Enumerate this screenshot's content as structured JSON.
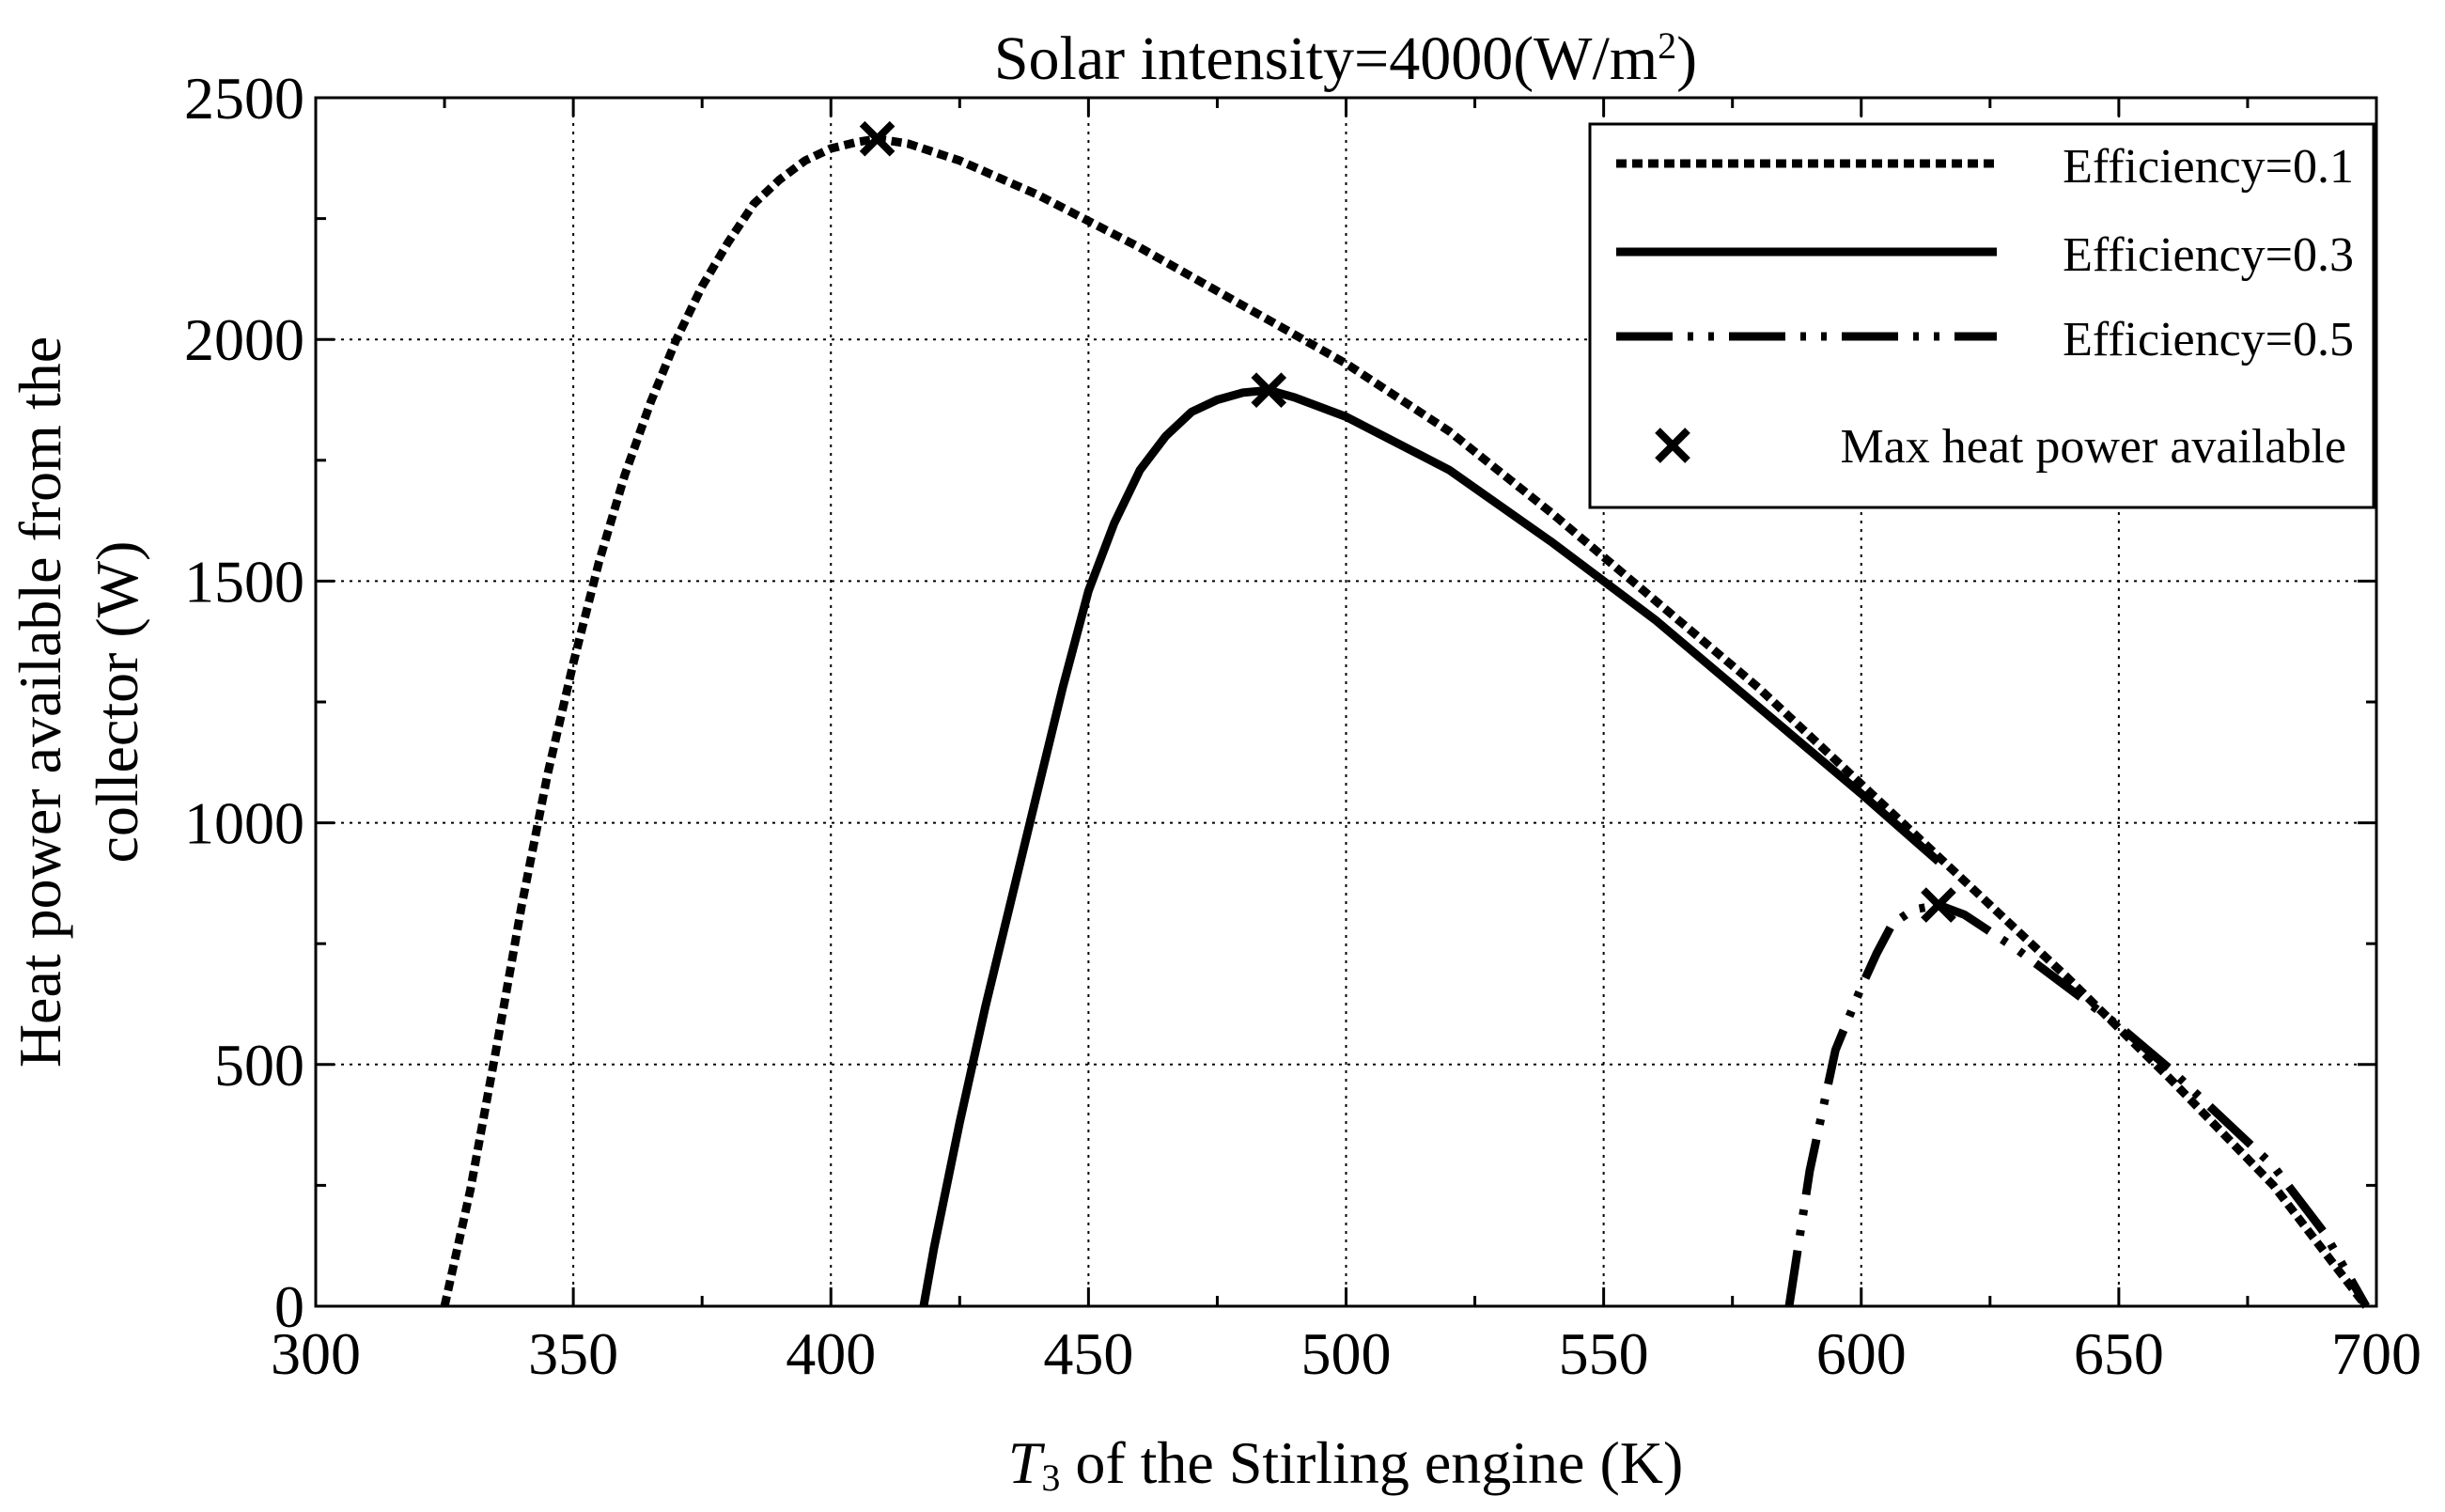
{
  "chart_data": {
    "type": "line",
    "title_prefix": "Solar intensity=4000(W/m",
    "title_sup": "2",
    "title_suffix": ")",
    "xlabel_italic": "T",
    "xlabel_sub": "3",
    "xlabel_rest": " of the Stirling engine (K)",
    "ylabel_line1": "Heat power available from the",
    "ylabel_line2": "collector (W)",
    "xlim": [
      300,
      700
    ],
    "ylim": [
      0,
      2500
    ],
    "xticks": [
      300,
      350,
      400,
      450,
      500,
      550,
      600,
      650,
      700
    ],
    "yticks": [
      0,
      500,
      1000,
      1500,
      2000,
      2500
    ],
    "grid": true,
    "legend_position": "top-right",
    "series": [
      {
        "name": "Efficiency=0.1",
        "style": "dotted",
        "x": [
          325,
          330,
          335,
          340,
          345,
          350,
          355,
          360,
          365,
          370,
          375,
          380,
          385,
          390,
          395,
          400,
          405,
          409,
          415,
          425,
          440,
          460,
          480,
          500,
          520,
          540,
          560,
          580,
          600,
          620,
          640,
          660,
          680,
          698
        ],
        "y": [
          0,
          240,
          530,
          830,
          1100,
          1330,
          1540,
          1720,
          1870,
          2000,
          2110,
          2200,
          2280,
          2330,
          2370,
          2395,
          2408,
          2415,
          2405,
          2370,
          2300,
          2190,
          2070,
          1950,
          1810,
          1640,
          1460,
          1280,
          1080,
          880,
          680,
          470,
          250,
          0
        ]
      },
      {
        "name": "Efficiency=0.3",
        "style": "solid",
        "x": [
          418,
          420,
          425,
          430,
          435,
          440,
          445,
          450,
          455,
          460,
          465,
          470,
          475,
          480,
          485,
          490,
          500,
          520,
          540,
          560,
          580,
          600,
          615
        ],
        "y": [
          0,
          120,
          380,
          620,
          840,
          1060,
          1280,
          1480,
          1620,
          1730,
          1800,
          1850,
          1875,
          1890,
          1895,
          1880,
          1840,
          1730,
          1580,
          1420,
          1240,
          1060,
          920
        ]
      },
      {
        "name": "Efficiency=0.5",
        "style": "dash-dot-dot",
        "x": [
          586,
          590,
          595,
          600,
          603,
          606,
          610,
          615,
          620,
          630,
          640,
          650,
          660,
          670,
          680,
          690,
          698
        ],
        "y": [
          0,
          280,
          530,
          660,
          730,
          790,
          820,
          830,
          810,
          740,
          660,
          580,
          490,
          390,
          290,
          150,
          0
        ]
      }
    ],
    "markers": {
      "name": "Max heat power available",
      "symbol": "x",
      "points": [
        {
          "x": 409,
          "y": 2415
        },
        {
          "x": 485,
          "y": 1895
        },
        {
          "x": 615,
          "y": 830
        }
      ]
    }
  }
}
